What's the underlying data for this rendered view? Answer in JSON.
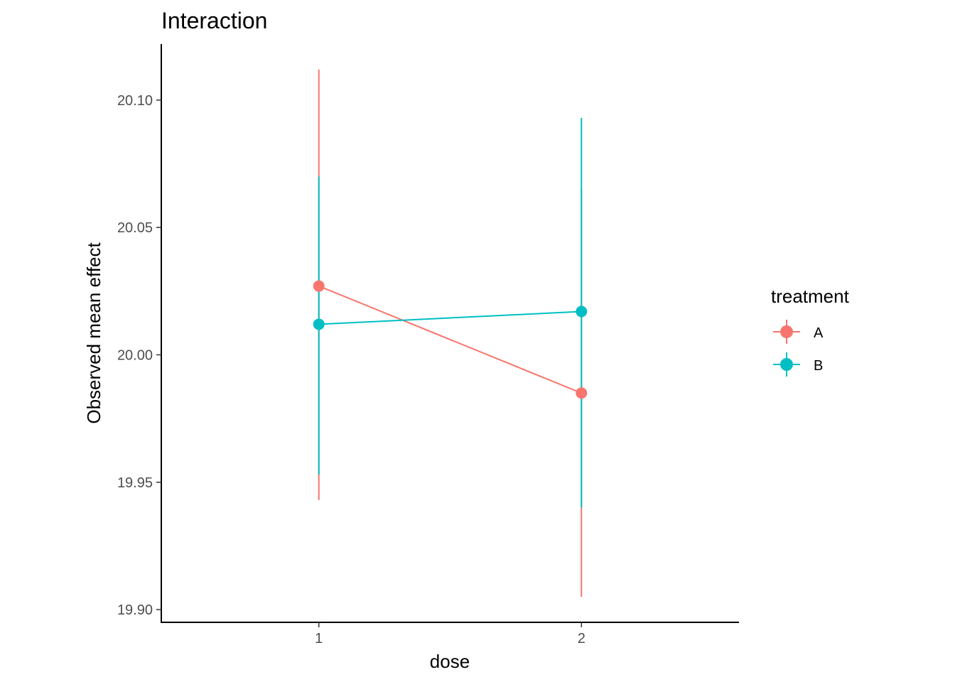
{
  "chart_data": {
    "type": "line",
    "title": "Interaction",
    "xlabel": "dose",
    "ylabel": "Observed mean effect",
    "categories": [
      "1",
      "2"
    ],
    "x_ticks": [
      "1",
      "2"
    ],
    "y_ticks": [
      "19.90",
      "19.95",
      "20.00",
      "20.05",
      "20.10"
    ],
    "ylim": [
      19.895,
      20.122
    ],
    "xlim": [
      0.4,
      2.6
    ],
    "grid": false,
    "legend": {
      "title": "treatment",
      "position": "right"
    },
    "series": [
      {
        "name": "A",
        "color": "#F8766D",
        "values": [
          20.027,
          19.985
        ],
        "error_low": [
          19.943,
          19.905
        ],
        "error_high": [
          20.112,
          20.065
        ]
      },
      {
        "name": "B",
        "color": "#00BFC4",
        "values": [
          20.012,
          20.017
        ],
        "error_low": [
          19.953,
          19.94
        ],
        "error_high": [
          20.07,
          20.093
        ]
      }
    ]
  }
}
